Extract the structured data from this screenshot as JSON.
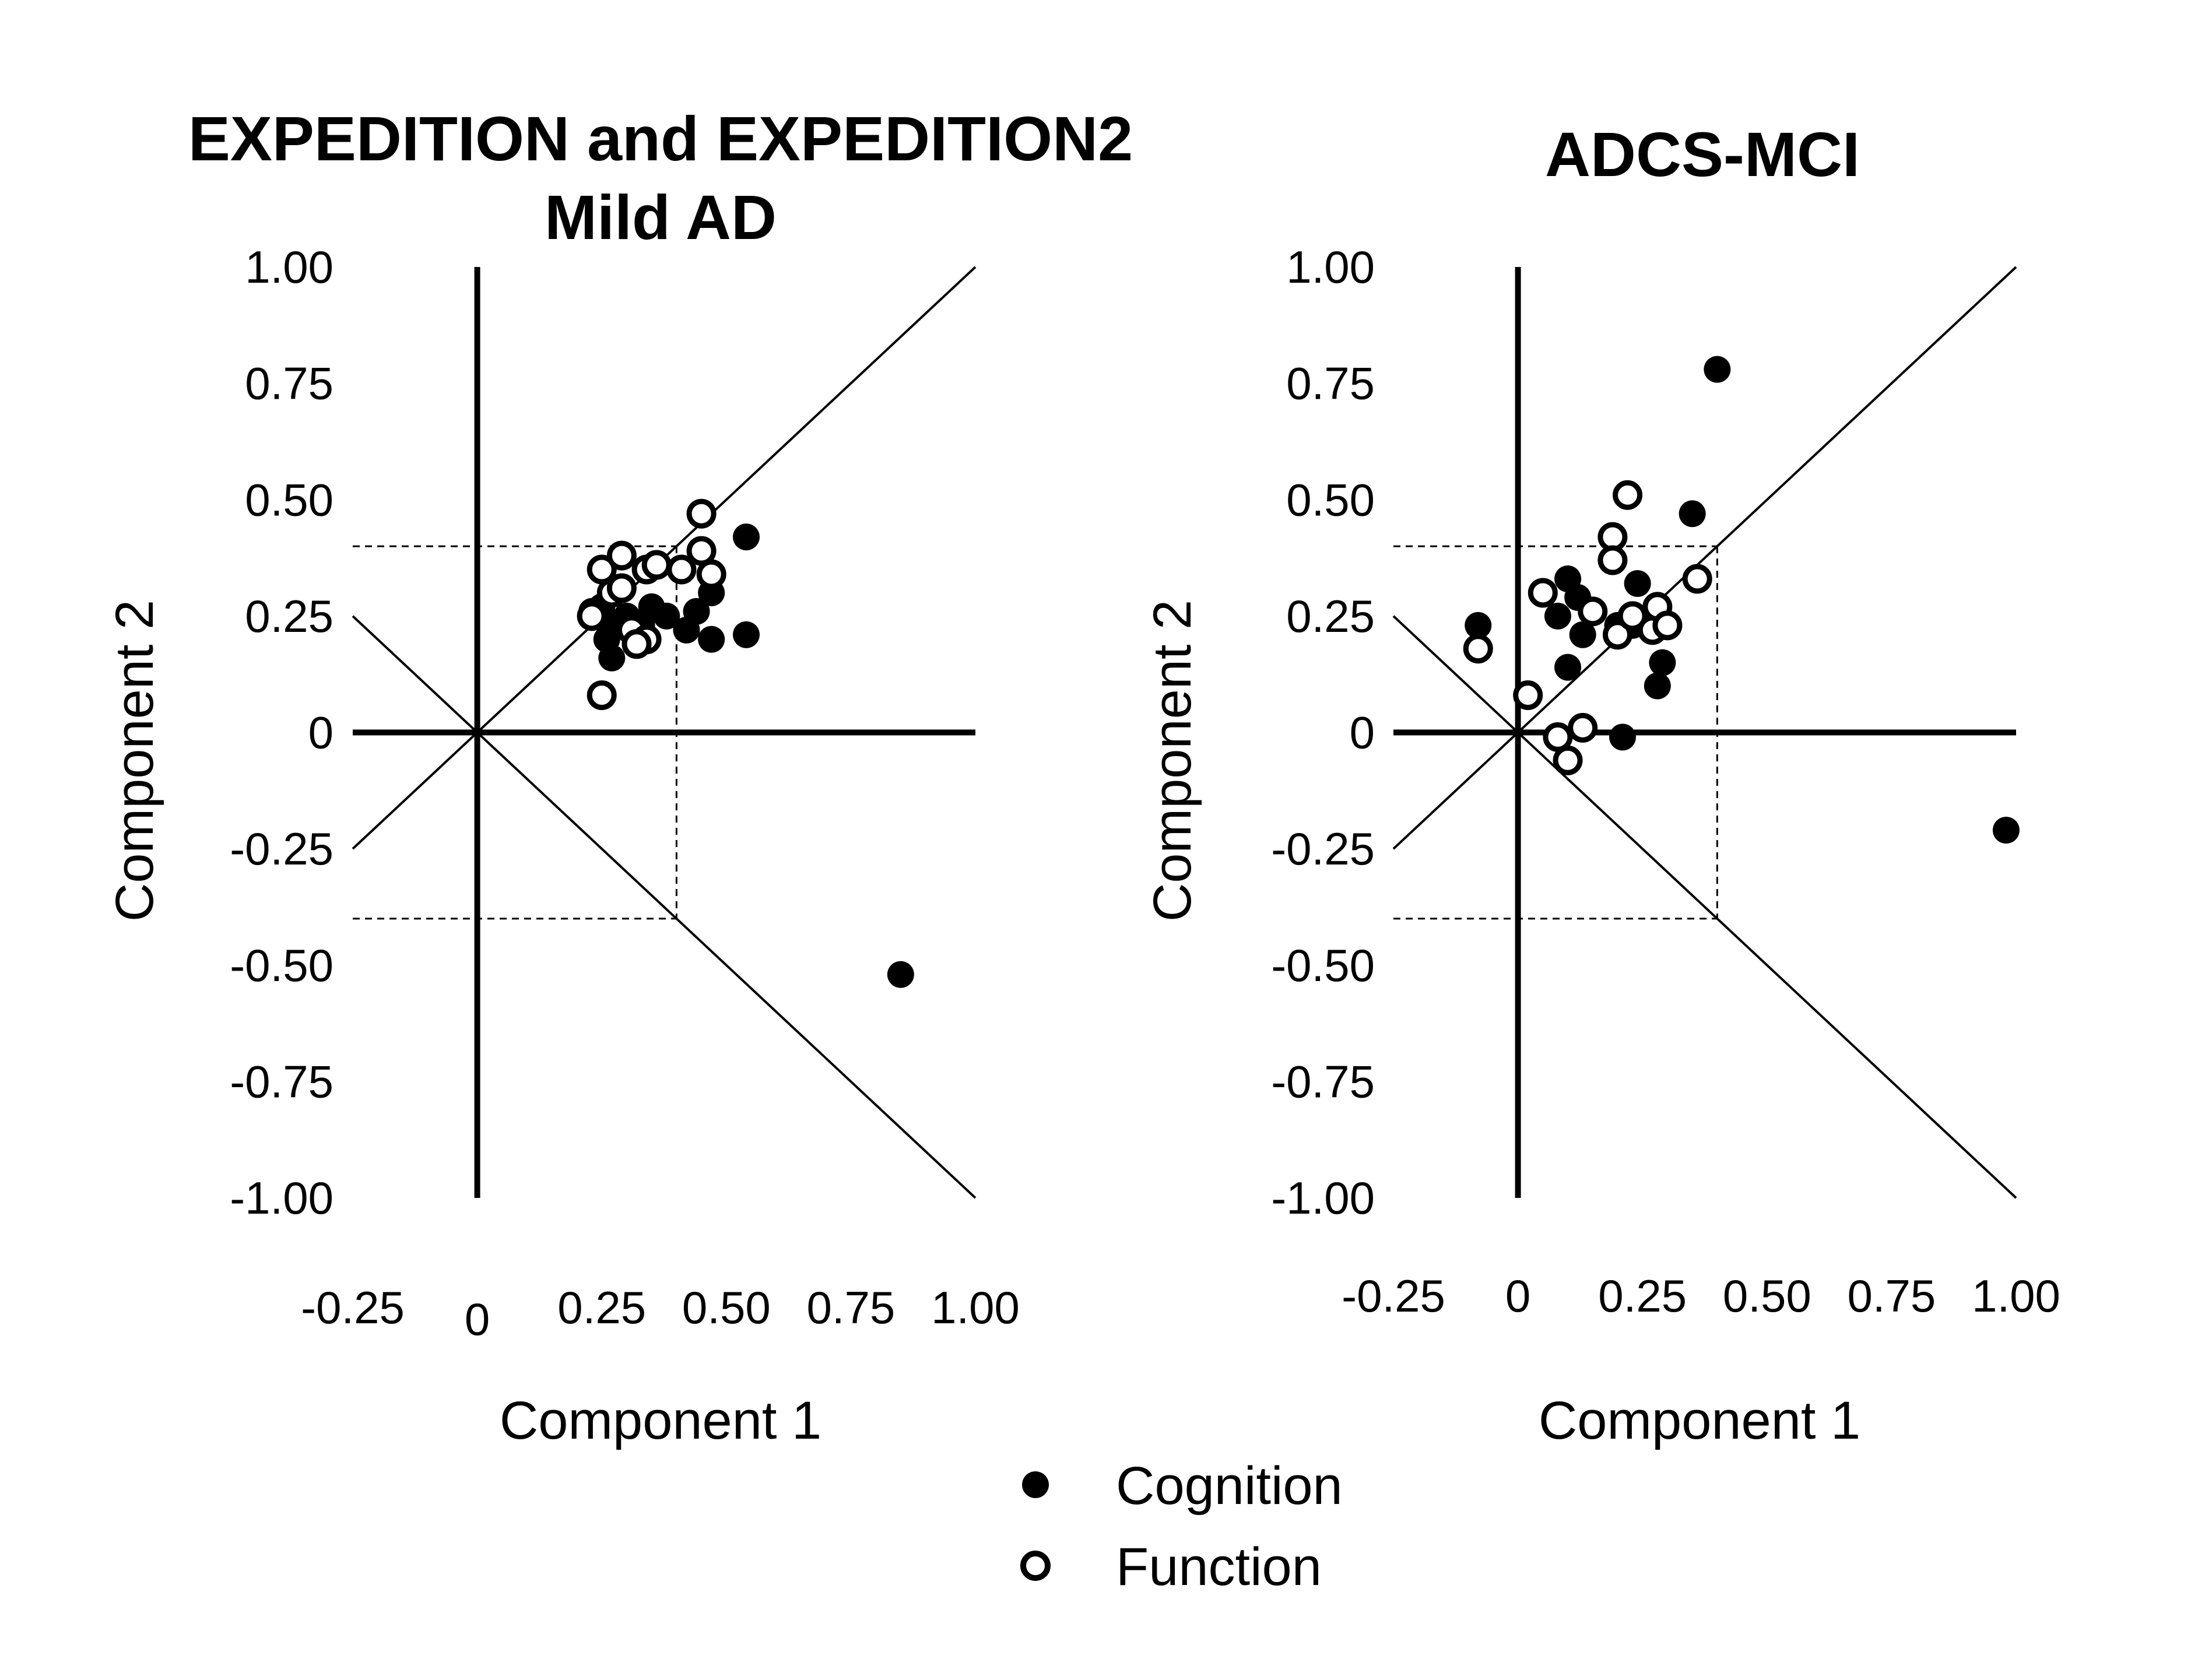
{
  "colors": {
    "ink": "#000000",
    "background": "#ffffff"
  },
  "legend": {
    "items": [
      {
        "label": "Cognition",
        "marker": "filled-circle"
      },
      {
        "label": "Function",
        "marker": "open-circle"
      }
    ]
  },
  "chart_data": [
    {
      "type": "scatter",
      "title": "EXPEDITION and  EXPEDITION2",
      "subtitle": "Mild AD",
      "xlabel": "Component 1",
      "ylabel": "Component 2",
      "xlim": [
        -0.25,
        1.0
      ],
      "ylim": [
        -1.0,
        1.0
      ],
      "x_ticks": [
        "-0.25",
        "0",
        "0.25",
        "0.50",
        "0.75",
        "1.00"
      ],
      "y_ticks": [
        "1.00",
        "0.75",
        "0.50",
        "0.25",
        "0",
        "-0.25",
        "-0.50",
        "-0.75",
        "-1.00"
      ],
      "grid": false,
      "reference_lines": [
        "y = x",
        "y = -x"
      ],
      "threshold_box": {
        "x": 0.4,
        "y": [
          -0.4,
          0.4
        ]
      },
      "series": [
        {
          "name": "Cognition",
          "marker": "filled",
          "points": [
            [
              0.23,
              0.26
            ],
            [
              0.25,
              0.27
            ],
            [
              0.26,
              0.2
            ],
            [
              0.27,
              0.23
            ],
            [
              0.27,
              0.16
            ],
            [
              0.3,
              0.25
            ],
            [
              0.33,
              0.23
            ],
            [
              0.35,
              0.27
            ],
            [
              0.38,
              0.25
            ],
            [
              0.42,
              0.22
            ],
            [
              0.44,
              0.26
            ],
            [
              0.47,
              0.3
            ],
            [
              0.47,
              0.2
            ],
            [
              0.54,
              0.42
            ],
            [
              0.54,
              0.21
            ],
            [
              0.85,
              -0.52
            ]
          ]
        },
        {
          "name": "Function",
          "marker": "open",
          "points": [
            [
              0.23,
              0.25
            ],
            [
              0.25,
              0.35
            ],
            [
              0.25,
              0.08
            ],
            [
              0.27,
              0.3
            ],
            [
              0.29,
              0.38
            ],
            [
              0.29,
              0.31
            ],
            [
              0.31,
              0.22
            ],
            [
              0.34,
              0.2
            ],
            [
              0.34,
              0.35
            ],
            [
              0.36,
              0.36
            ],
            [
              0.41,
              0.35
            ],
            [
              0.45,
              0.47
            ],
            [
              0.45,
              0.39
            ],
            [
              0.47,
              0.34
            ],
            [
              0.32,
              0.19
            ]
          ]
        }
      ]
    },
    {
      "type": "scatter",
      "title": "ADCS-MCI",
      "xlabel": "Component 1",
      "ylabel": "Component 2",
      "xlim": [
        -0.25,
        1.0
      ],
      "ylim": [
        -1.0,
        1.0
      ],
      "x_ticks": [
        "-0.25",
        "0",
        "0.25",
        "0.50",
        "0.75",
        "1.00"
      ],
      "y_ticks": [
        "1.00",
        "0.75",
        "0.50",
        "0.25",
        "0",
        "-0.25",
        "-0.50",
        "-0.75",
        "-1.00"
      ],
      "grid": false,
      "reference_lines": [
        "y = x",
        "y = -x"
      ],
      "threshold_box": {
        "x": 0.4,
        "y": [
          -0.4,
          0.4
        ]
      },
      "series": [
        {
          "name": "Cognition",
          "marker": "filled",
          "points": [
            [
              -0.08,
              0.23
            ],
            [
              0.08,
              0.25
            ],
            [
              0.1,
              0.33
            ],
            [
              0.1,
              0.14
            ],
            [
              0.12,
              0.29
            ],
            [
              0.13,
              0.21
            ],
            [
              0.2,
              0.23
            ],
            [
              0.23,
              0.23
            ],
            [
              0.24,
              0.32
            ],
            [
              0.28,
              0.1
            ],
            [
              0.29,
              0.15
            ],
            [
              0.35,
              0.47
            ],
            [
              0.4,
              0.78
            ],
            [
              0.21,
              -0.01
            ],
            [
              0.98,
              -0.21
            ]
          ]
        },
        {
          "name": "Function",
          "marker": "open",
          "points": [
            [
              -0.08,
              0.18
            ],
            [
              0.02,
              0.08
            ],
            [
              0.05,
              0.3
            ],
            [
              0.08,
              -0.01
            ],
            [
              0.1,
              -0.06
            ],
            [
              0.13,
              0.01
            ],
            [
              0.15,
              0.26
            ],
            [
              0.19,
              0.42
            ],
            [
              0.19,
              0.37
            ],
            [
              0.2,
              0.21
            ],
            [
              0.22,
              0.51
            ],
            [
              0.23,
              0.25
            ],
            [
              0.27,
              0.22
            ],
            [
              0.28,
              0.27
            ],
            [
              0.3,
              0.23
            ],
            [
              0.36,
              0.33
            ]
          ]
        }
      ]
    }
  ]
}
